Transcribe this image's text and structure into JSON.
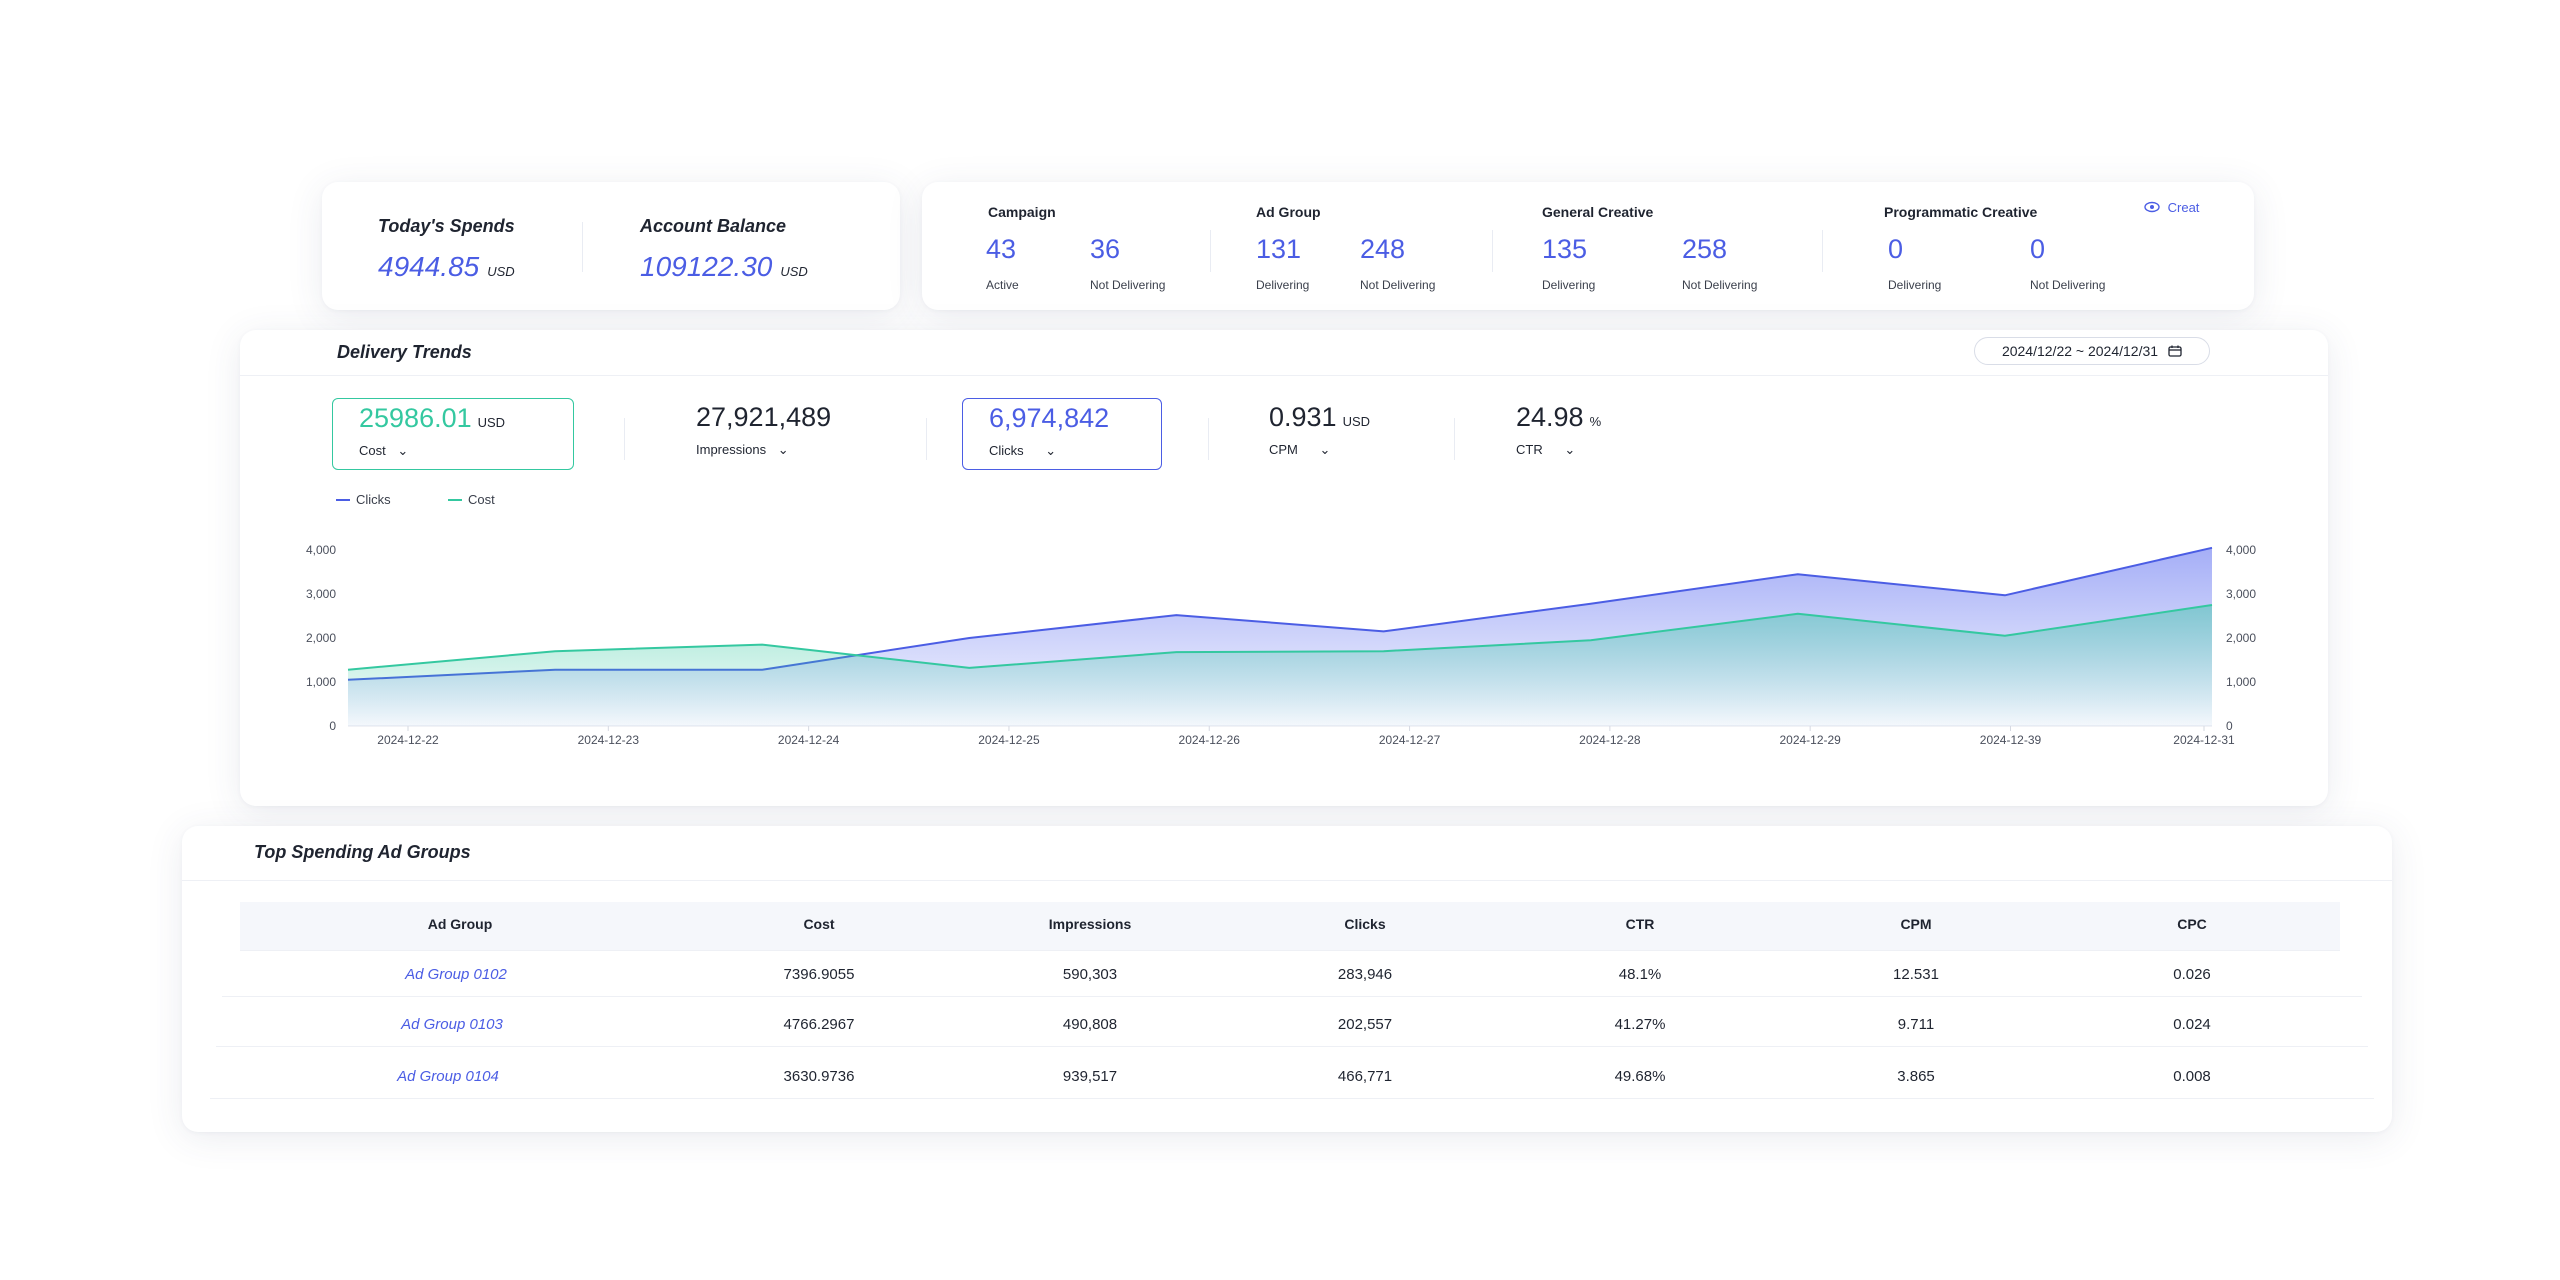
{
  "summary": {
    "today_spends": {
      "label": "Today's Spends",
      "value": "4944.85",
      "unit": "USD"
    },
    "account_balance": {
      "label": "Account Balance",
      "value": "109122.30",
      "unit": "USD"
    }
  },
  "counts": {
    "campaign": {
      "title": "Campaign",
      "a_num": "43",
      "a_label": "Active",
      "b_num": "36",
      "b_label": "Not Delivering"
    },
    "ad_group": {
      "title": "Ad Group",
      "a_num": "131",
      "a_label": "Delivering",
      "b_num": "248",
      "b_label": "Not Delivering"
    },
    "general_creative": {
      "title": "General Creative",
      "a_num": "135",
      "a_label": "Delivering",
      "b_num": "258",
      "b_label": "Not Delivering"
    },
    "programmatic_creative": {
      "title": "Programmatic Creative",
      "a_num": "0",
      "a_label": "Delivering",
      "b_num": "0",
      "b_label": "Not Delivering"
    },
    "creat_label": "Creat",
    "creat_icon": "eye-icon"
  },
  "trends": {
    "title": "Delivery Trends",
    "date_range": "2024/12/22 ~ 2024/12/31",
    "calendar_icon": "calendar-icon",
    "metrics": [
      {
        "value": "25986.01",
        "unit": "USD",
        "label": "Cost"
      },
      {
        "value": "27,921,489",
        "unit": "",
        "label": "Impressions"
      },
      {
        "value": "6,974,842",
        "unit": "",
        "label": "Clicks"
      },
      {
        "value": "0.931",
        "unit": "USD",
        "label": "CPM"
      },
      {
        "value": "24.98",
        "unit": "%",
        "label": "CTR"
      }
    ],
    "legend": {
      "clicks": "Clicks",
      "cost": "Cost"
    },
    "colors": {
      "clicks": "#4b5de4",
      "cost": "#34c8a0"
    }
  },
  "chart_data": {
    "type": "area",
    "x": [
      "2024-12-22",
      "2024-12-23",
      "2024-12-24",
      "2024-12-25",
      "2024-12-26",
      "2024-12-27",
      "2024-12-28",
      "2024-12-29",
      "2024-12-39",
      "2024-12-31"
    ],
    "series": [
      {
        "name": "Clicks",
        "axis": "left",
        "values": [
          1050,
          1280,
          1280,
          2000,
          2520,
          2150,
          2780,
          3450,
          2970,
          4050
        ]
      },
      {
        "name": "Cost",
        "axis": "right",
        "values": [
          1280,
          1700,
          1850,
          1320,
          1680,
          1700,
          1950,
          2550,
          2050,
          2750
        ]
      }
    ],
    "y_left": {
      "ticks": [
        "0",
        "1,000",
        "2,000",
        "3,000",
        "4,000"
      ],
      "ylim": [
        0,
        4000
      ]
    },
    "y_right": {
      "ticks": [
        "0",
        "1,000",
        "2,000",
        "3,000",
        "4,000"
      ],
      "ylim": [
        0,
        4000
      ]
    },
    "grid": false,
    "legend_position": "top-left"
  },
  "table": {
    "title": "Top Spending Ad Groups",
    "columns": [
      "Ad Group",
      "Cost",
      "Impressions",
      "Clicks",
      "CTR",
      "CPM",
      "CPC"
    ],
    "rows": [
      [
        "Ad Group 0102",
        "7396.9055",
        "590,303",
        "283,946",
        "48.1%",
        "12.531",
        "0.026"
      ],
      [
        "Ad Group 0103",
        "4766.2967",
        "490,808",
        "202,557",
        "41.27%",
        "9.711",
        "0.024"
      ],
      [
        "Ad Group 0104",
        "3630.9736",
        "939,517",
        "466,771",
        "49.68%",
        "3.865",
        "0.008"
      ]
    ]
  }
}
